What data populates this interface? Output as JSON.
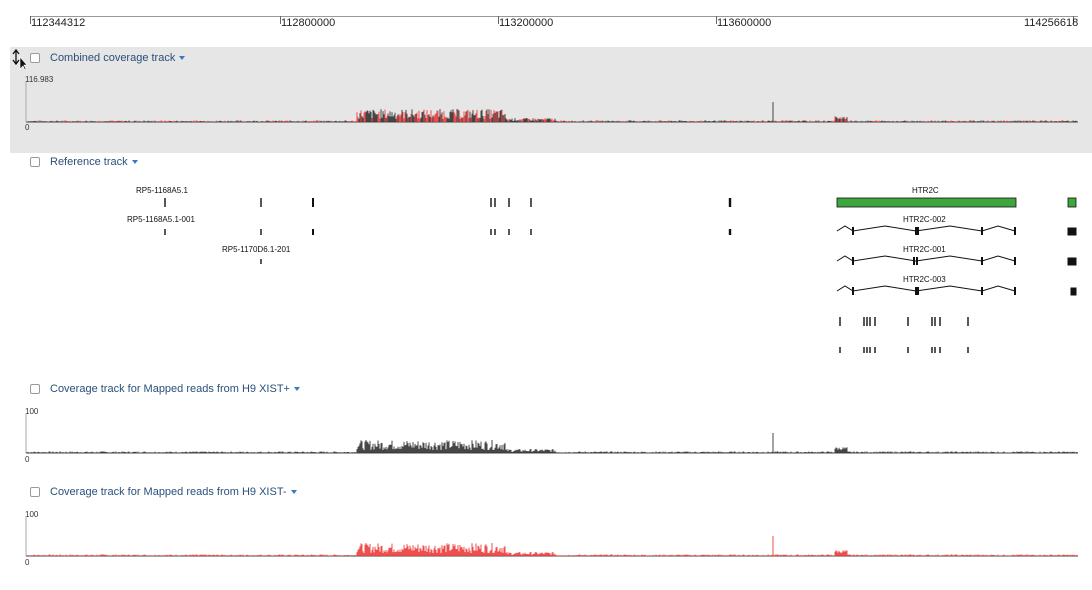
{
  "ruler": {
    "ticks": [
      "112344312",
      "112800000",
      "113200000",
      "113600000",
      "114256618"
    ]
  },
  "tracks": {
    "combined": {
      "title": "Combined coverage track",
      "max": "116.983",
      "min": "0"
    },
    "reference": {
      "title": "Reference track",
      "genes": [
        "RP5-1168A5.1",
        "RP5-1168A5.1-001",
        "RP5-1170D6.1-201",
        "HTR2C",
        "HTR2C-002",
        "HTR2C-001",
        "HTR2C-003"
      ]
    },
    "xist_plus": {
      "title": "Coverage track for Mapped reads from H9 XIST+",
      "max": "100",
      "min": "0"
    },
    "xist_minus": {
      "title": "Coverage track for Mapped reads from H9 XIST-",
      "max": "100",
      "min": "0"
    }
  },
  "colors": {
    "plus": "#333333",
    "minus": "#ee3b3b",
    "gene_fill": "#3fa63f",
    "link": "#2a4f7a"
  }
}
